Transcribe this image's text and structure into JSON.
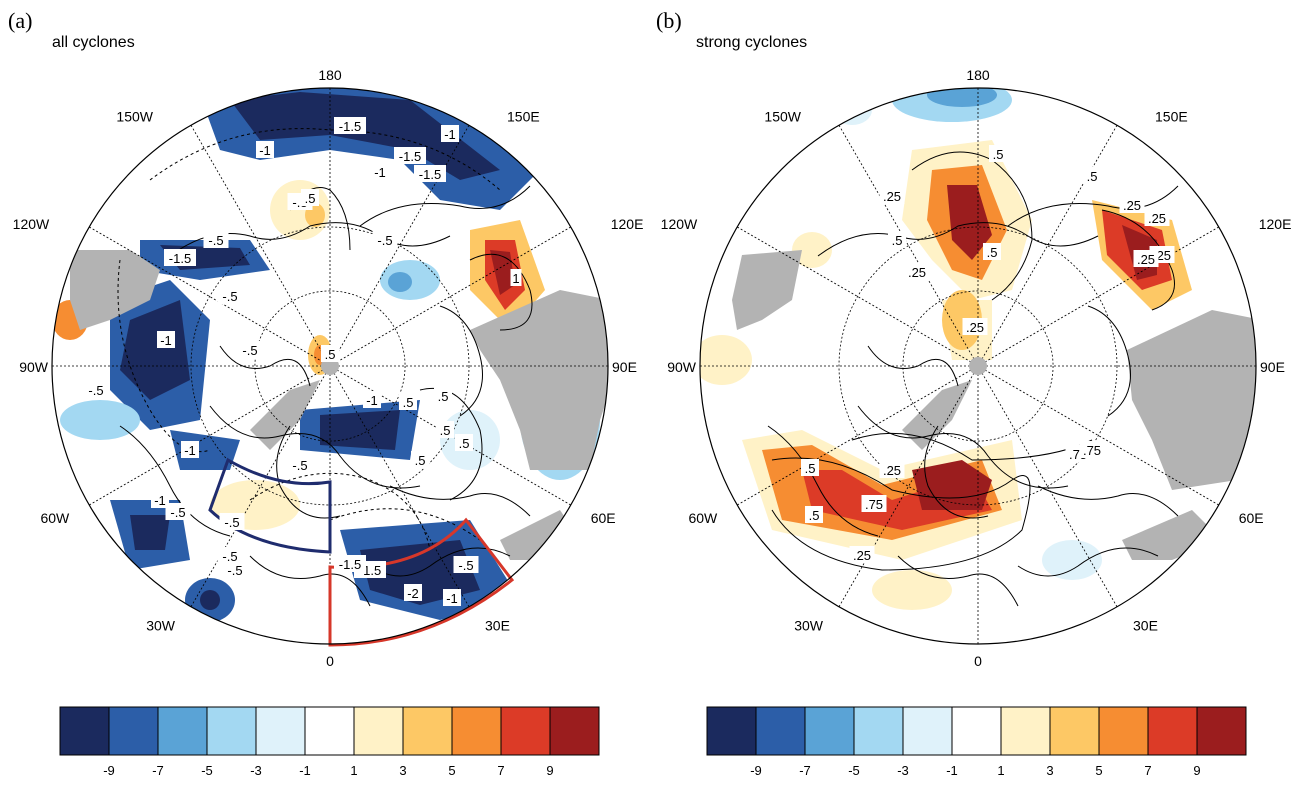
{
  "panels": [
    {
      "letter": "(a)",
      "title": "all cyclones",
      "lon_labels": {
        "top": "180",
        "bottom": "0",
        "left": "90W",
        "right": "90E",
        "l150": "150W",
        "l120": "120W",
        "l60": "60W",
        "l30": "30W",
        "r150": "150E",
        "r120": "120E",
        "r60": "60E",
        "r30": "30E"
      },
      "contour_labels": [
        "-1.5",
        "-1",
        "-1.5",
        "-1",
        "-1.5",
        "-1",
        "-.5",
        "-.5",
        "-.5",
        "-1",
        "-.5",
        "-1.5",
        "-1",
        "-.5",
        "-.5",
        ".5",
        ".5",
        ".5",
        "1",
        ".5",
        ".5",
        "-1",
        "-.5",
        "-.5",
        ".5",
        "-.5",
        ".5",
        "-2",
        "-1",
        "-1.5",
        "-.5",
        "-1.5",
        "-1",
        "-.5",
        "-.5"
      ],
      "boxes": [
        {
          "name": "blue-box",
          "color": "#1f2c6e"
        },
        {
          "name": "red-box",
          "color": "#d6372a"
        }
      ]
    },
    {
      "letter": "(b)",
      "title": "strong cyclones",
      "lon_labels": {
        "top": "180",
        "bottom": "0",
        "left": "90W",
        "right": "90E",
        "l150": "150W",
        "l120": "120W",
        "l60": "60W",
        "l30": "30W",
        "r150": "150E",
        "r120": "120E",
        "r60": "60E",
        "r30": "30E"
      },
      "contour_labels": [
        ".5",
        ".25",
        ".5",
        ".25",
        ".5",
        ".25",
        ".25",
        ".5",
        ".25",
        ".25",
        ".25",
        ".75",
        ".5",
        ".75",
        ".5",
        ".25",
        ".25",
        ".75"
      ]
    }
  ],
  "colorbar": {
    "colors": [
      "#1b2a5e",
      "#2c5ea8",
      "#5aa3d6",
      "#a3d8f2",
      "#dff2fa",
      "#ffffff",
      "#fff2c7",
      "#fdc865",
      "#f68d32",
      "#dc3b27",
      "#9b1d1e"
    ],
    "tick_labels": [
      "-9",
      "-7",
      "-5",
      "-3",
      "-1",
      "1",
      "3",
      "5",
      "7",
      "9"
    ]
  },
  "palette": {
    "grey_mask": "#b3b3b3",
    "coast": "#000000"
  }
}
